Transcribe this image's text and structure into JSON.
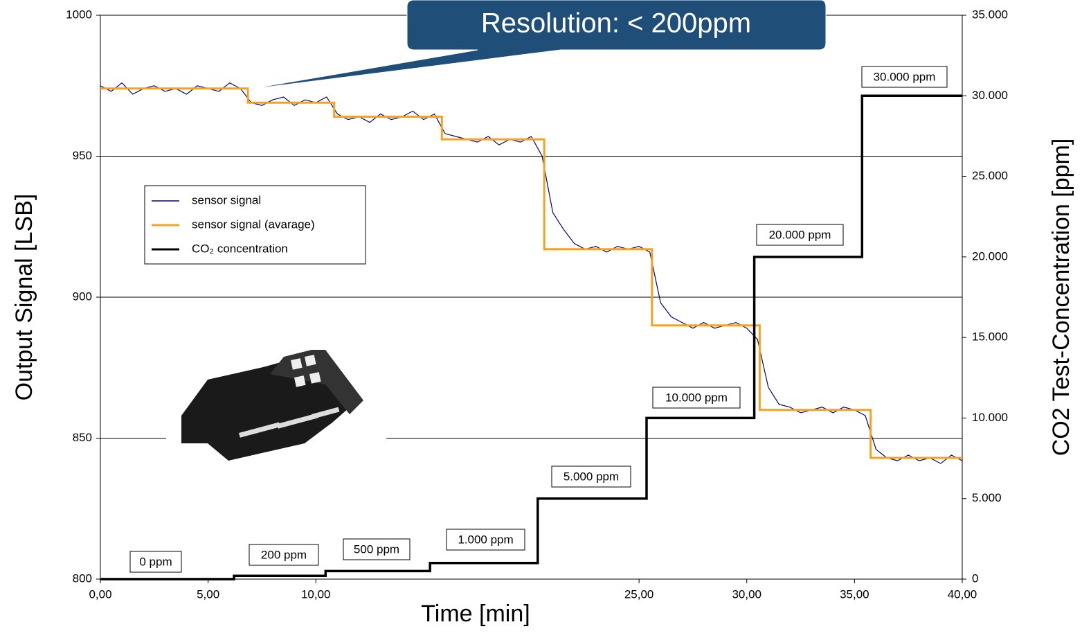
{
  "chart_data": {
    "type": "line",
    "xlabel": "Time [min]",
    "ylabel": "Output Signal [LSB]",
    "y2label": "CO2 Test-Concentration [ppm]",
    "xlim": [
      0,
      40
    ],
    "ylim": [
      800,
      1000
    ],
    "y2lim": [
      0,
      35000
    ],
    "xticks": [
      {
        "value": 0,
        "label": "0,00"
      },
      {
        "value": 5,
        "label": "5,00"
      },
      {
        "value": 10,
        "label": "10,00"
      },
      {
        "value": 25,
        "label": "25,00"
      },
      {
        "value": 30,
        "label": "30,00"
      },
      {
        "value": 35,
        "label": "35,00"
      },
      {
        "value": 40,
        "label": "40,00"
      }
    ],
    "yticks": [
      800,
      850,
      900,
      950,
      1000
    ],
    "y2ticks": [
      0,
      {
        "value": 5000,
        "label": "5.000"
      },
      {
        "value": 10000,
        "label": "10.000"
      },
      {
        "value": 15000,
        "label": "15.000"
      },
      {
        "value": 20000,
        "label": "20.000"
      },
      {
        "value": 25000,
        "label": "25.000"
      },
      {
        "value": 30000,
        "label": "30.000"
      },
      {
        "value": 35000,
        "label": "35.000"
      }
    ],
    "grid": true,
    "legend": "upper left",
    "series": [
      {
        "name": "sensor signal",
        "color": "#000080",
        "x": [
          0,
          0.5,
          1,
          1.5,
          2,
          2.5,
          3,
          3.5,
          4,
          4.5,
          5,
          5.5,
          6,
          6.5,
          7,
          7.5,
          8,
          8.5,
          9,
          9.5,
          10,
          10.5,
          11,
          11.5,
          12,
          12.5,
          13,
          13.5,
          14,
          14.5,
          15,
          15.5,
          16,
          16.5,
          17,
          17.5,
          18,
          18.5,
          19,
          19.5,
          20,
          20.5,
          21,
          21.5,
          22,
          22.5,
          23,
          23.5,
          24,
          24.5,
          25,
          25.5,
          26,
          26.5,
          27,
          27.5,
          28,
          28.5,
          29,
          29.5,
          30,
          30.5,
          31,
          31.5,
          32,
          32.5,
          33,
          33.5,
          34,
          34.5,
          35,
          35.5,
          36,
          36.5,
          37,
          37.5,
          38,
          38.5,
          39,
          39.5,
          40
        ],
        "values": [
          975,
          973,
          976,
          972,
          974,
          975,
          973,
          974,
          972,
          975,
          974,
          973,
          976,
          974,
          969,
          968,
          970,
          971,
          968,
          970,
          969,
          971,
          965,
          963,
          964,
          962,
          965,
          963,
          964,
          966,
          963,
          965,
          958,
          957,
          956,
          955,
          957,
          954,
          956,
          955,
          957,
          950,
          930,
          924,
          919,
          917,
          918,
          916,
          918,
          917,
          918,
          916,
          898,
          893,
          891,
          889,
          891,
          889,
          890,
          891,
          889,
          885,
          868,
          862,
          861,
          859,
          860,
          861,
          859,
          861,
          860,
          858,
          846,
          843,
          842,
          844,
          842,
          843,
          841,
          844,
          842
        ]
      },
      {
        "name": "sensor signal (avarage)",
        "color": "#f7a21b",
        "x": [
          0,
          6.85,
          6.85,
          10.85,
          10.85,
          15.85,
          15.85,
          20.6,
          20.6,
          25.6,
          25.6,
          30.6,
          30.6,
          35.75,
          35.75,
          40
        ],
        "values": [
          974,
          974,
          969,
          969,
          964,
          964,
          956,
          956,
          917,
          917,
          890,
          890,
          860,
          860,
          843,
          843
        ]
      },
      {
        "name": "CO₂ concentration",
        "color": "#000000",
        "axis": "y2",
        "x": [
          0,
          6.2,
          6.2,
          10.45,
          10.45,
          15.3,
          15.3,
          20.3,
          20.3,
          25.35,
          25.35,
          30.35,
          30.35,
          35.35,
          35.35,
          40
        ],
        "values": [
          0,
          0,
          200,
          200,
          500,
          500,
          1000,
          1000,
          5000,
          5000,
          10000,
          10000,
          20000,
          20000,
          30000,
          30000
        ]
      }
    ],
    "annotations": [
      "0 ppm",
      "200 ppm",
      "500 ppm",
      "1.000 ppm",
      "5.000 ppm",
      "10.000 ppm",
      "20.000 ppm",
      "30.000 ppm"
    ],
    "callout": "Resolution: < 200ppm"
  }
}
